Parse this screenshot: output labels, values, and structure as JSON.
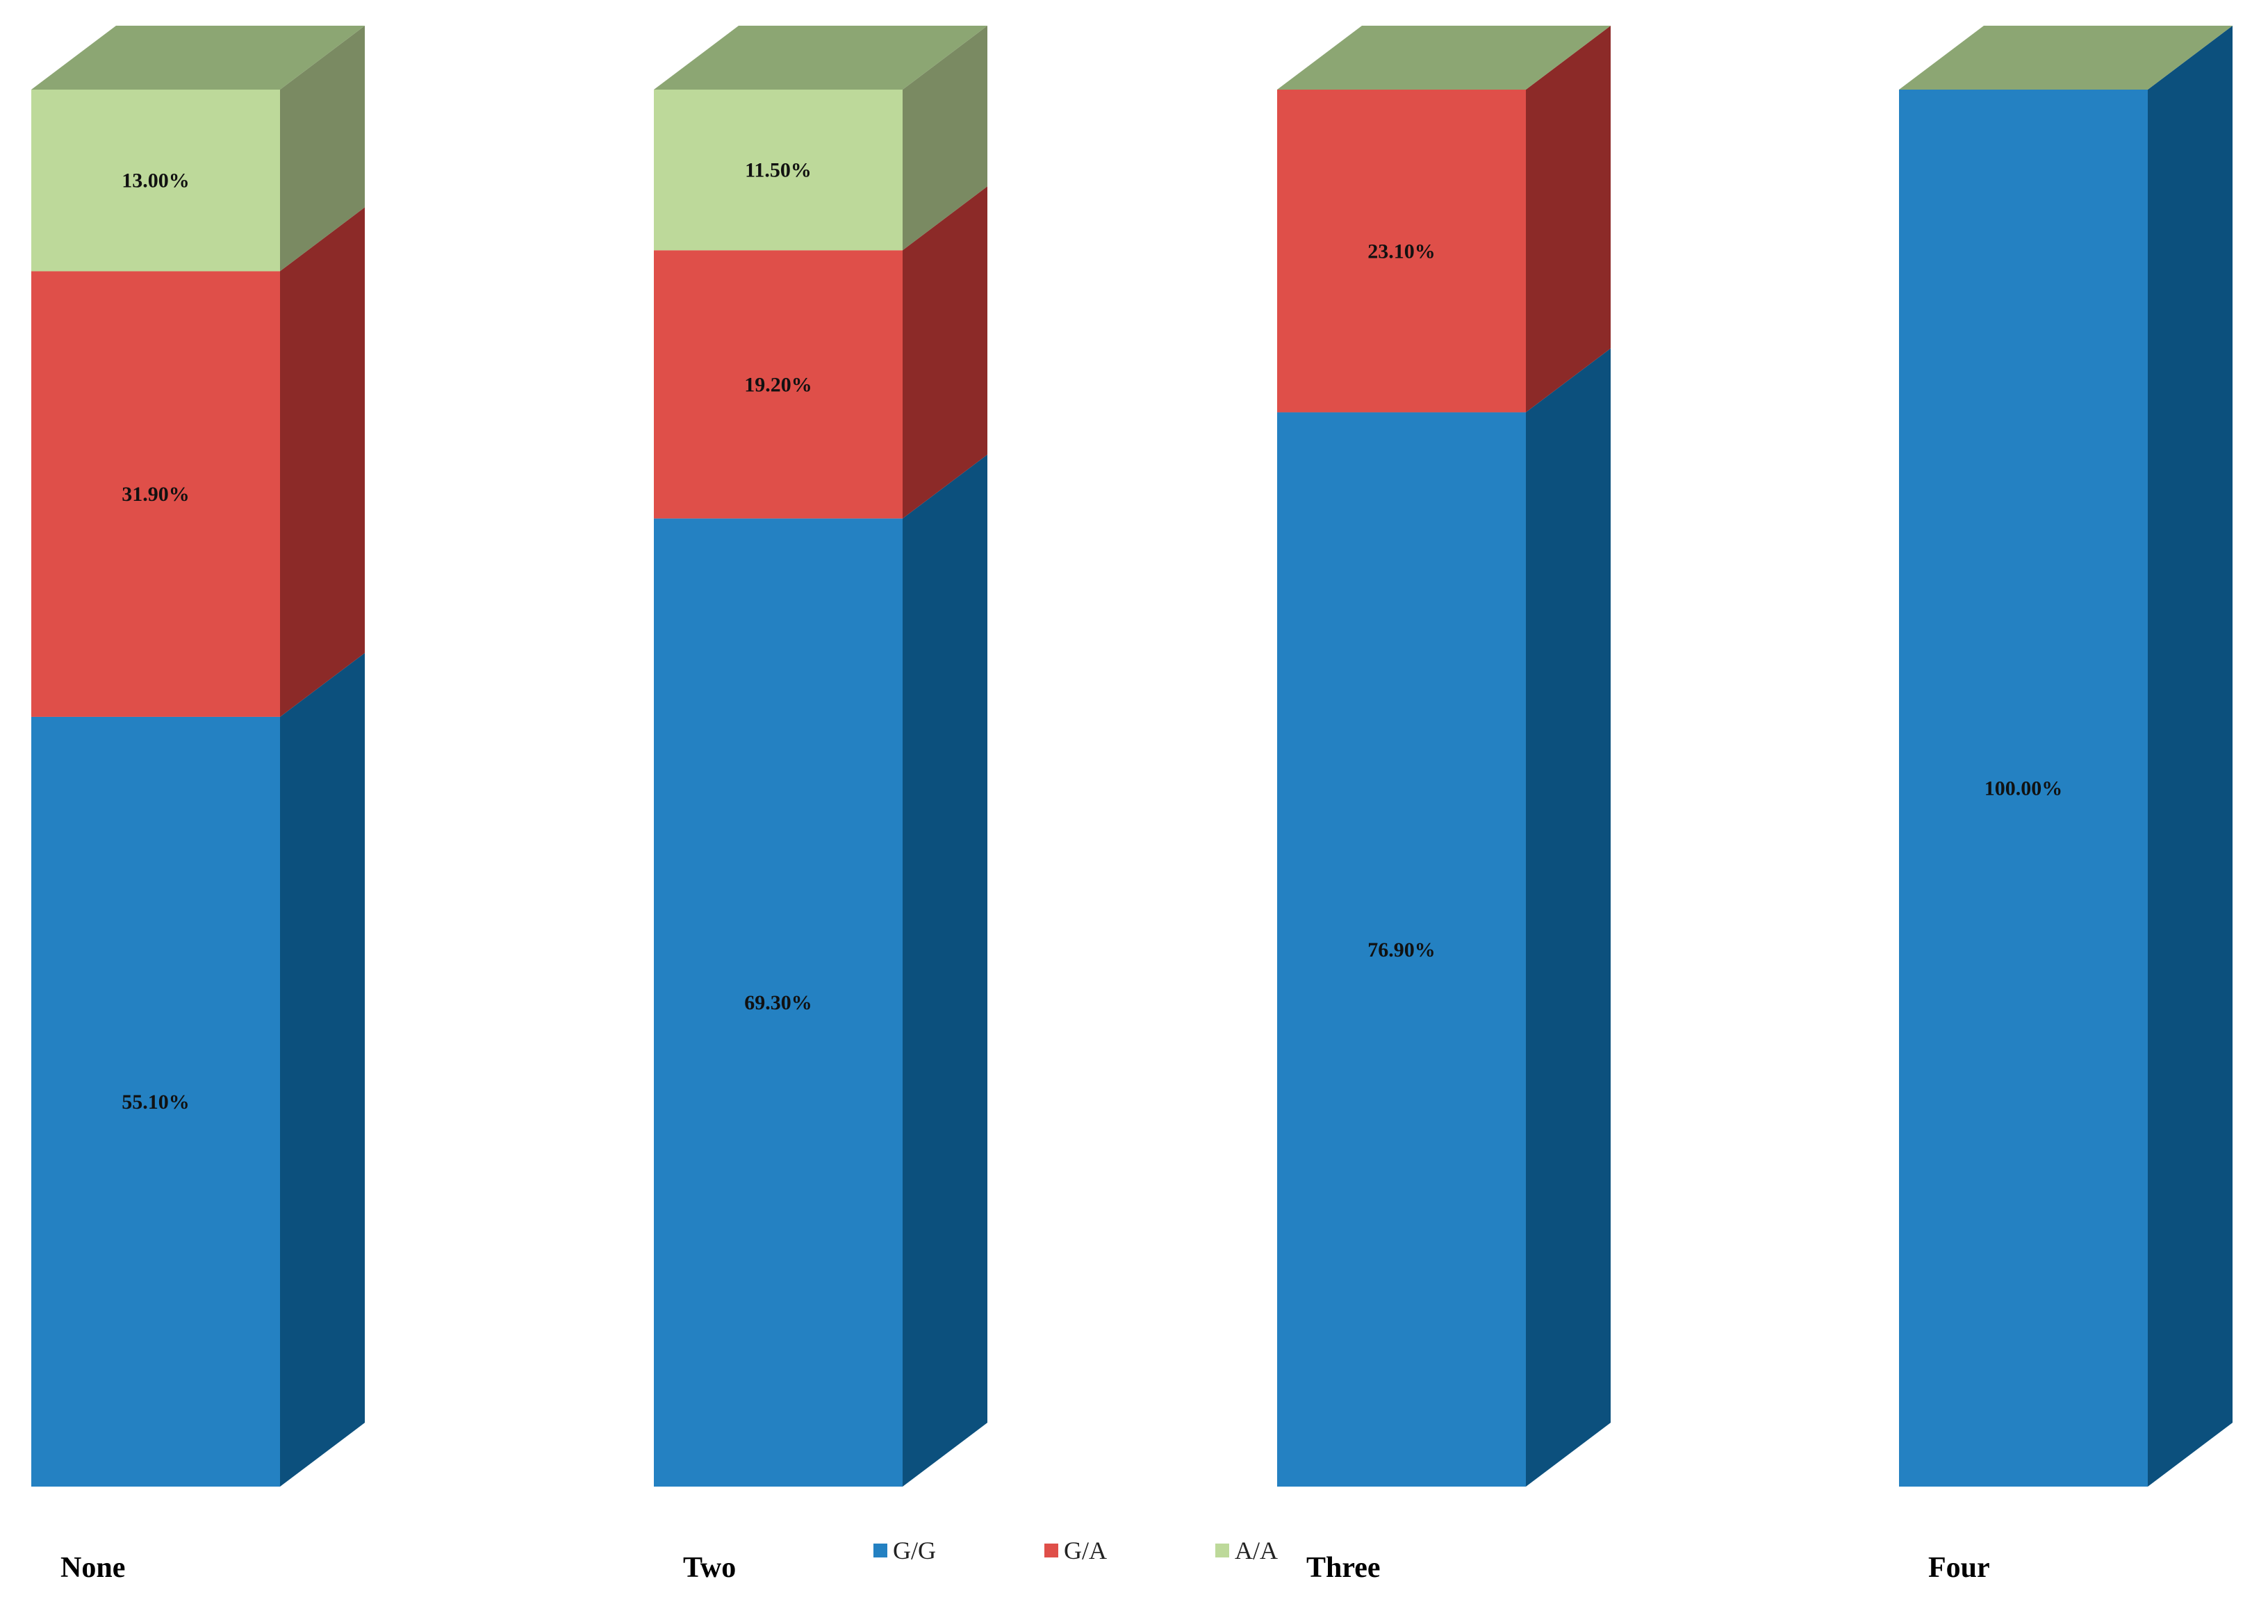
{
  "chart_data": {
    "type": "bar",
    "stacked": true,
    "three_d": true,
    "categories": [
      "None",
      "Two",
      "Three",
      "Four"
    ],
    "series": [
      {
        "name": "G/G",
        "values": [
          55.1,
          69.3,
          76.9,
          100.0
        ],
        "labels": [
          "55.10%",
          "69.30%",
          "76.90%",
          "100.00%"
        ],
        "color": "#2481C2",
        "side_color": "#0C507D"
      },
      {
        "name": "G/A",
        "values": [
          31.9,
          19.2,
          23.1,
          0
        ],
        "labels": [
          "31.90%",
          "19.20%",
          "23.10%",
          ""
        ],
        "color": "#DF4F49",
        "side_color": "#8C2A28"
      },
      {
        "name": "A/A",
        "values": [
          13.0,
          11.5,
          0,
          0
        ],
        "labels": [
          "13.00%",
          "11.50%",
          "",
          ""
        ],
        "color": "#BDD99A",
        "side_color": "#7A8A62"
      }
    ],
    "top_color": "#8CA673",
    "ylim": [
      0,
      100
    ],
    "title": "",
    "xlabel": "",
    "ylabel": "",
    "grid": false,
    "legend_position": "bottom"
  }
}
